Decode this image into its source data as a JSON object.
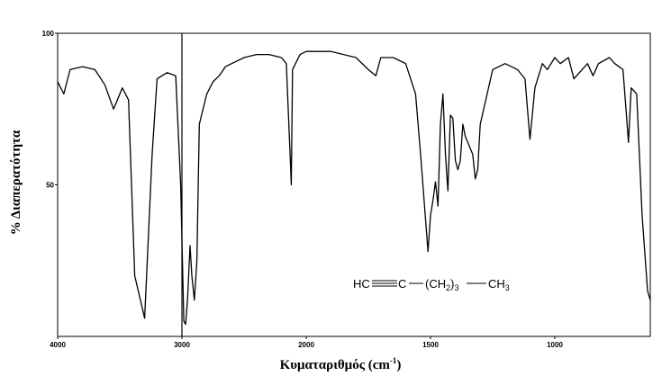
{
  "chart_data": {
    "type": "line",
    "title": "",
    "xlabel": "Κυματαριθμός (cm",
    "xlabel_sup": "-1",
    "xlabel_close": ")",
    "ylabel": "% Διαπερατότητα",
    "xlim": [
      4000,
      650
    ],
    "ylim": [
      0,
      100
    ],
    "x_tick_labels": [
      "4000",
      "3000",
      "2000",
      "1500",
      "1000"
    ],
    "y_tick_labels": [
      "100",
      "50"
    ],
    "y_ticks": [
      100,
      50
    ],
    "marker_line_x": 3000,
    "grid": false,
    "legend": "none",
    "line_color": "#000000",
    "molecule_label": {
      "part1": "HC",
      "part2": "C",
      "part3": "(CH",
      "sub1": "2",
      "part4": ")",
      "sub2": "3",
      "part5": "CH",
      "sub3": "3"
    },
    "series": [
      {
        "values": [
          [
            4000,
            84
          ],
          [
            3950,
            80
          ],
          [
            3900,
            88
          ],
          [
            3800,
            89
          ],
          [
            3700,
            88
          ],
          [
            3620,
            83
          ],
          [
            3550,
            75
          ],
          [
            3480,
            82
          ],
          [
            3430,
            78
          ],
          [
            3380,
            20
          ],
          [
            3300,
            6
          ],
          [
            3240,
            60
          ],
          [
            3200,
            85
          ],
          [
            3120,
            87
          ],
          [
            3050,
            86
          ],
          [
            3010,
            50
          ],
          [
            2985,
            5
          ],
          [
            2970,
            4
          ],
          [
            2955,
            12
          ],
          [
            2935,
            30
          ],
          [
            2920,
            20
          ],
          [
            2900,
            12
          ],
          [
            2880,
            25
          ],
          [
            2860,
            70
          ],
          [
            2800,
            80
          ],
          [
            2750,
            84
          ],
          [
            2700,
            86
          ],
          [
            2650,
            89
          ],
          [
            2600,
            90
          ],
          [
            2500,
            92
          ],
          [
            2400,
            93
          ],
          [
            2300,
            93
          ],
          [
            2200,
            92
          ],
          [
            2160,
            90
          ],
          [
            2130,
            60
          ],
          [
            2120,
            50
          ],
          [
            2110,
            88
          ],
          [
            2050,
            93
          ],
          [
            2000,
            94
          ],
          [
            1900,
            94
          ],
          [
            1800,
            92
          ],
          [
            1750,
            88
          ],
          [
            1720,
            86
          ],
          [
            1700,
            92
          ],
          [
            1650,
            92
          ],
          [
            1600,
            90
          ],
          [
            1560,
            80
          ],
          [
            1540,
            60
          ],
          [
            1510,
            28
          ],
          [
            1500,
            40
          ],
          [
            1490,
            45
          ],
          [
            1480,
            51
          ],
          [
            1470,
            43
          ],
          [
            1460,
            70
          ],
          [
            1450,
            80
          ],
          [
            1440,
            60
          ],
          [
            1430,
            48
          ],
          [
            1420,
            73
          ],
          [
            1410,
            72
          ],
          [
            1400,
            58
          ],
          [
            1390,
            55
          ],
          [
            1380,
            58
          ],
          [
            1370,
            70
          ],
          [
            1360,
            66
          ],
          [
            1350,
            64
          ],
          [
            1340,
            62
          ],
          [
            1330,
            60
          ],
          [
            1320,
            52
          ],
          [
            1310,
            55
          ],
          [
            1300,
            70
          ],
          [
            1250,
            88
          ],
          [
            1200,
            90
          ],
          [
            1150,
            88
          ],
          [
            1120,
            85
          ],
          [
            1100,
            65
          ],
          [
            1080,
            82
          ],
          [
            1050,
            90
          ],
          [
            1030,
            88
          ],
          [
            1000,
            92
          ],
          [
            980,
            90
          ],
          [
            950,
            92
          ],
          [
            930,
            85
          ],
          [
            900,
            88
          ],
          [
            880,
            90
          ],
          [
            860,
            86
          ],
          [
            840,
            90
          ],
          [
            800,
            92
          ],
          [
            780,
            90
          ],
          [
            750,
            88
          ],
          [
            730,
            64
          ],
          [
            720,
            82
          ],
          [
            700,
            80
          ],
          [
            680,
            40
          ],
          [
            660,
            15
          ],
          [
            650,
            12
          ]
        ]
      }
    ]
  }
}
